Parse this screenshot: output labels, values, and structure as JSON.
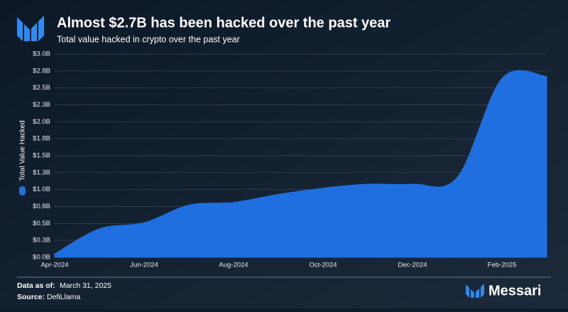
{
  "chart_data": {
    "type": "area",
    "title": "Almost $2.7B has been hacked over the past year",
    "subtitle": "Total value hacked in crypto over the past year",
    "y_label": "Total Value Hacked",
    "x": [
      "2024-04",
      "2024-05",
      "2024-06",
      "2024-07",
      "2024-08",
      "2024-09",
      "2024-10",
      "2024-11",
      "2024-12",
      "2025-01",
      "2025-02",
      "2025-03"
    ],
    "series": [
      {
        "color": "#1f6fe0",
        "values": [
          0.05,
          0.42,
          0.51,
          0.77,
          0.81,
          0.93,
          1.02,
          1.08,
          1.08,
          1.18,
          2.64,
          2.67
        ]
      }
    ],
    "xlim": [
      "2024-04",
      "2025-03"
    ],
    "xticks": [
      {
        "value": "2024-04",
        "label": "Apr-2024"
      },
      {
        "value": "2024-06",
        "label": "Jun-2024"
      },
      {
        "value": "2024-08",
        "label": "Aug-2024"
      },
      {
        "value": "2024-10",
        "label": "Oct-2024"
      },
      {
        "value": "2024-12",
        "label": "Dec-2024"
      },
      {
        "value": "2025-02",
        "label": "Feb-2025"
      }
    ],
    "ylim": [
      0,
      3.0
    ],
    "yticks": [
      {
        "value": 0,
        "label": "$0.0B"
      },
      {
        "value": 0.25,
        "label": "$0.3B"
      },
      {
        "value": 0.5,
        "label": "$0.5B"
      },
      {
        "value": 0.75,
        "label": "$0.8B"
      },
      {
        "value": 1.0,
        "label": "$1.0B"
      },
      {
        "value": 1.25,
        "label": "$1.3B"
      },
      {
        "value": 1.5,
        "label": "$1.5B"
      },
      {
        "value": 1.75,
        "label": "$1.8B"
      },
      {
        "value": 2.0,
        "label": "$2.0B"
      },
      {
        "value": 2.25,
        "label": "$2.3B"
      },
      {
        "value": 2.5,
        "label": "$2.5B"
      },
      {
        "value": 2.75,
        "label": "$2.8B"
      },
      {
        "value": 3.0,
        "label": "$3.0B"
      }
    ],
    "grid": true,
    "footer": {
      "date_label": "Data as of:",
      "date": "March 31, 2025",
      "source_label": "Source:",
      "source": "DefiLlama",
      "brand": "Messari"
    }
  }
}
